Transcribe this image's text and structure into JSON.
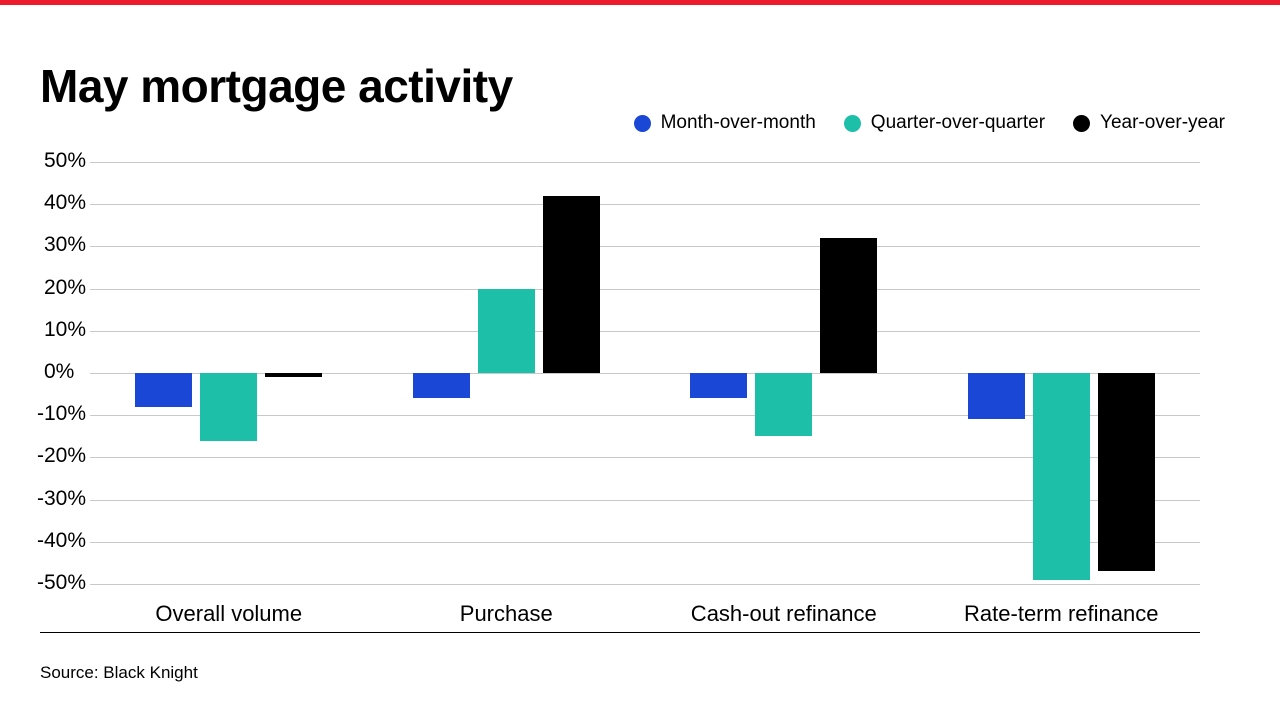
{
  "page": {
    "top_bar_color": "#ed1b2e",
    "background_color": "#ffffff",
    "gridline_color": "#c9c9c9"
  },
  "title": "May mortgage activity",
  "source": "Source: Black Knight",
  "legend": [
    {
      "label": "Month-over-month",
      "color": "#1a47d6"
    },
    {
      "label": "Quarter-over-quarter",
      "color": "#1dbfa8"
    },
    {
      "label": "Year-over-year",
      "color": "#000000"
    }
  ],
  "chart_data": {
    "type": "bar",
    "title": "May mortgage activity",
    "categories": [
      "Overall volume",
      "Purchase",
      "Cash-out refinance",
      "Rate-term refinance"
    ],
    "series": [
      {
        "name": "Month-over-month",
        "color": "#1a47d6",
        "values": [
          -8,
          -6,
          -6,
          -11
        ]
      },
      {
        "name": "Quarter-over-quarter",
        "color": "#1dbfa8",
        "values": [
          -16,
          20,
          -15,
          -49
        ]
      },
      {
        "name": "Year-over-year",
        "color": "#000000",
        "values": [
          -1,
          42,
          32,
          -47
        ]
      }
    ],
    "xlabel": "",
    "ylabel": "",
    "ylim": [
      -50,
      50
    ],
    "y_ticks": [
      "50%",
      "40%",
      "30%",
      "20%",
      "10%",
      "0%",
      "-10%",
      "-20%",
      "-30%",
      "-40%",
      "-50%"
    ],
    "grid": true,
    "legend_position": "top-right",
    "source": "Source: Black Knight"
  }
}
